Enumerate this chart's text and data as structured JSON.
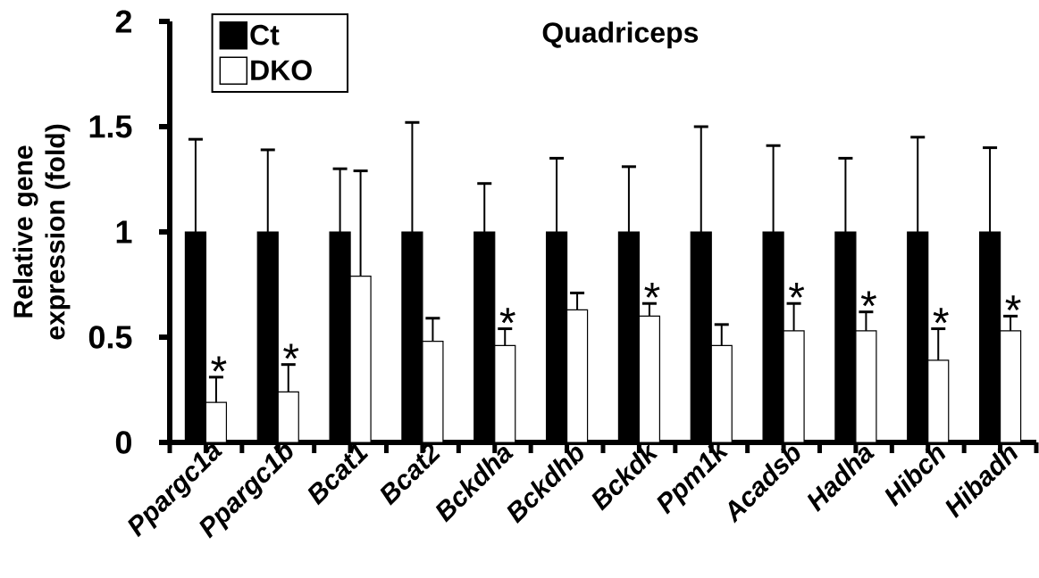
{
  "chart_data": {
    "type": "bar",
    "title": "Quadriceps",
    "ylabel": "Relative gene expression (fold)",
    "categories": [
      "Ppargc1a",
      "Ppargc1b",
      "Bcat1",
      "Bcat2",
      "Bckdha",
      "Bckdhb",
      "Bckdk",
      "Ppm1k",
      "Acadsb",
      "Hadha",
      "Hibch",
      "Hibadh"
    ],
    "series": [
      {
        "name": "Ct",
        "color": "#000000",
        "values": [
          1,
          1,
          1,
          1,
          1,
          1,
          1,
          1,
          1,
          1,
          1,
          1
        ],
        "errors": [
          [
            1,
            1.44
          ],
          [
            1,
            1.39
          ],
          [
            1,
            1.3
          ],
          [
            1,
            1.52
          ],
          [
            1,
            1.23
          ],
          [
            1,
            1.35
          ],
          [
            1,
            1.31
          ],
          [
            1,
            1.5
          ],
          [
            1,
            1.41
          ],
          [
            1,
            1.35
          ],
          [
            1,
            1.45
          ],
          [
            1,
            1.4
          ]
        ]
      },
      {
        "name": "DKO",
        "color": "#ffffff",
        "values": [
          0.19,
          0.24,
          0.79,
          0.48,
          0.46,
          0.63,
          0.6,
          0.46,
          0.53,
          0.53,
          0.39,
          0.53
        ],
        "errors": [
          [
            0.19,
            0.31
          ],
          [
            0.24,
            0.37
          ],
          [
            0.79,
            1.29
          ],
          [
            0.48,
            0.59
          ],
          [
            0.46,
            0.54
          ],
          [
            0.63,
            0.71
          ],
          [
            0.6,
            0.66
          ],
          [
            0.46,
            0.56
          ],
          [
            0.53,
            0.66
          ],
          [
            0.53,
            0.62
          ],
          [
            0.39,
            0.54
          ],
          [
            0.53,
            0.6
          ]
        ],
        "value_labels": [
          "*",
          "*",
          null,
          null,
          "*",
          null,
          "*",
          null,
          "*",
          "*",
          "*",
          "*"
        ]
      }
    ],
    "ylim": [
      0,
      2
    ],
    "yticks": [
      0,
      0.5,
      1,
      1.5,
      2
    ],
    "legend": "top left"
  }
}
